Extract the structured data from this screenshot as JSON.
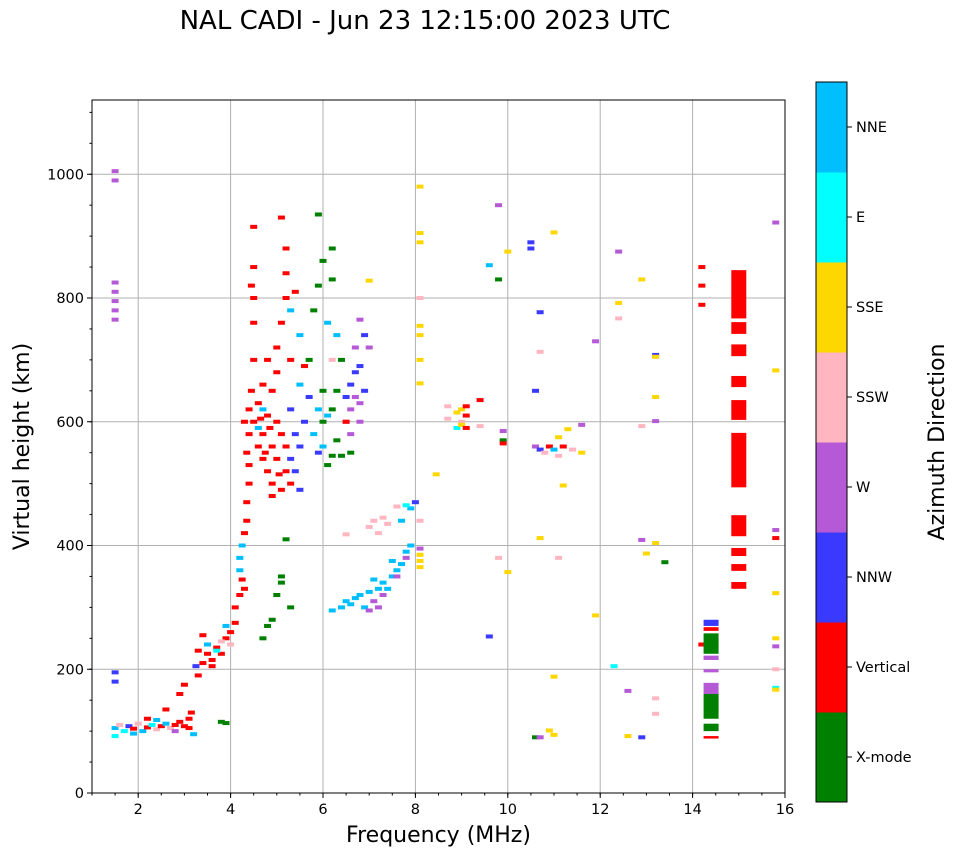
{
  "chart_data": {
    "type": "scatter",
    "title": "NAL CADI - Jun 23 12:15:00 2023 UTC",
    "xlabel": "Frequency (MHz)",
    "ylabel": "Virtual height (km)",
    "xlim": [
      1,
      16
    ],
    "ylim": [
      0,
      1120
    ],
    "xticks": [
      2,
      4,
      6,
      8,
      10,
      12,
      14,
      16
    ],
    "yticks": [
      0,
      200,
      400,
      600,
      800,
      1000
    ],
    "grid": true,
    "colorbar": {
      "label": "Azimuth Direction",
      "categories": [
        {
          "name": "X-mode",
          "color": "#008000"
        },
        {
          "name": "Vertical",
          "color": "#ff0000"
        },
        {
          "name": "NNW",
          "color": "#3a3aff"
        },
        {
          "name": "W",
          "color": "#b559d6"
        },
        {
          "name": "SSW",
          "color": "#ffb6c1"
        },
        {
          "name": "SSE",
          "color": "#ffd700"
        },
        {
          "name": "E",
          "color": "#00ffff"
        },
        {
          "name": "NNE",
          "color": "#00bfff"
        }
      ]
    },
    "point_fields": [
      "frequency_mhz",
      "height_km",
      "category_index"
    ],
    "points": [
      [
        1.5,
        105,
        7
      ],
      [
        1.6,
        110,
        4
      ],
      [
        1.7,
        100,
        6
      ],
      [
        1.8,
        108,
        2
      ],
      [
        1.9,
        104,
        1
      ],
      [
        2.0,
        112,
        4
      ],
      [
        2.1,
        100,
        7
      ],
      [
        2.2,
        106,
        1
      ],
      [
        2.3,
        110,
        6
      ],
      [
        2.4,
        103,
        4
      ],
      [
        2.5,
        108,
        1
      ],
      [
        2.6,
        112,
        7
      ],
      [
        2.7,
        105,
        4
      ],
      [
        2.8,
        110,
        1
      ],
      [
        2.9,
        115,
        1
      ],
      [
        3.0,
        108,
        1
      ],
      [
        3.1,
        120,
        1
      ],
      [
        3.15,
        130,
        1
      ],
      [
        2.2,
        120,
        1
      ],
      [
        2.6,
        135,
        1
      ],
      [
        2.9,
        160,
        1
      ],
      [
        3.0,
        175,
        1
      ],
      [
        1.5,
        92,
        6
      ],
      [
        3.2,
        95,
        7
      ],
      [
        1.5,
        195,
        2
      ],
      [
        1.5,
        180,
        2
      ],
      [
        1.9,
        96,
        7
      ],
      [
        2.4,
        118,
        7
      ],
      [
        2.8,
        100,
        3
      ],
      [
        3.1,
        105,
        1
      ],
      [
        1.5,
        1005,
        3
      ],
      [
        1.5,
        990,
        3
      ],
      [
        1.5,
        825,
        3
      ],
      [
        1.5,
        810,
        3
      ],
      [
        1.5,
        795,
        3
      ],
      [
        1.5,
        780,
        3
      ],
      [
        1.5,
        765,
        3
      ],
      [
        3.3,
        190,
        1
      ],
      [
        3.4,
        210,
        1
      ],
      [
        3.5,
        225,
        1
      ],
      [
        3.6,
        215,
        1
      ],
      [
        3.7,
        235,
        1
      ],
      [
        3.8,
        225,
        1
      ],
      [
        3.9,
        250,
        1
      ],
      [
        4.0,
        260,
        1
      ],
      [
        4.1,
        275,
        1
      ],
      [
        4.1,
        300,
        1
      ],
      [
        3.5,
        240,
        7
      ],
      [
        3.7,
        230,
        6
      ],
      [
        3.9,
        270,
        7
      ],
      [
        4.0,
        240,
        4
      ],
      [
        3.4,
        255,
        1
      ],
      [
        3.6,
        205,
        1
      ],
      [
        3.8,
        245,
        4
      ],
      [
        3.3,
        230,
        1
      ],
      [
        3.25,
        205,
        2
      ],
      [
        4.2,
        320,
        1
      ],
      [
        4.25,
        345,
        1
      ],
      [
        4.2,
        380,
        7
      ],
      [
        4.25,
        400,
        7
      ],
      [
        4.3,
        420,
        1
      ],
      [
        4.35,
        440,
        1
      ],
      [
        4.35,
        470,
        1
      ],
      [
        4.4,
        500,
        1
      ],
      [
        4.4,
        530,
        1
      ],
      [
        4.35,
        550,
        1
      ],
      [
        4.4,
        580,
        1
      ],
      [
        4.5,
        600,
        1
      ],
      [
        4.3,
        600,
        1
      ],
      [
        4.4,
        620,
        1
      ],
      [
        4.45,
        650,
        1
      ],
      [
        4.5,
        700,
        1
      ],
      [
        4.5,
        760,
        1
      ],
      [
        4.5,
        800,
        1
      ],
      [
        4.45,
        820,
        1
      ],
      [
        4.5,
        850,
        1
      ],
      [
        4.5,
        915,
        1
      ],
      [
        4.3,
        330,
        1
      ],
      [
        4.2,
        360,
        7
      ],
      [
        4.6,
        560,
        1
      ],
      [
        4.7,
        540,
        1
      ],
      [
        4.8,
        520,
        1
      ],
      [
        4.9,
        500,
        1
      ],
      [
        4.7,
        580,
        1
      ],
      [
        4.9,
        560,
        1
      ],
      [
        5.0,
        540,
        1
      ],
      [
        4.8,
        610,
        1
      ],
      [
        5.0,
        600,
        1
      ],
      [
        5.1,
        580,
        1
      ],
      [
        5.2,
        520,
        1
      ],
      [
        5.3,
        500,
        1
      ],
      [
        4.6,
        630,
        1
      ],
      [
        5.2,
        560,
        1
      ],
      [
        5.1,
        490,
        1
      ],
      [
        4.9,
        480,
        1
      ],
      [
        4.75,
        550,
        1
      ],
      [
        4.85,
        590,
        1
      ],
      [
        5.05,
        515,
        1
      ],
      [
        4.65,
        605,
        1
      ],
      [
        5.3,
        540,
        2
      ],
      [
        5.4,
        520,
        2
      ],
      [
        5.5,
        560,
        2
      ],
      [
        5.4,
        580,
        2
      ],
      [
        5.6,
        600,
        2
      ],
      [
        5.7,
        640,
        2
      ],
      [
        5.3,
        620,
        2
      ],
      [
        5.5,
        490,
        2
      ],
      [
        4.6,
        590,
        7
      ],
      [
        4.7,
        620,
        7
      ],
      [
        4.8,
        700,
        1
      ],
      [
        5.0,
        720,
        1
      ],
      [
        5.1,
        760,
        1
      ],
      [
        5.2,
        800,
        1
      ],
      [
        5.3,
        780,
        7
      ],
      [
        5.2,
        840,
        1
      ],
      [
        5.1,
        930,
        1
      ],
      [
        5.2,
        880,
        1
      ],
      [
        5.4,
        810,
        1
      ],
      [
        5.0,
        680,
        1
      ],
      [
        5.3,
        700,
        1
      ],
      [
        5.5,
        740,
        7
      ],
      [
        5.6,
        690,
        1
      ],
      [
        4.9,
        650,
        1
      ],
      [
        4.7,
        660,
        1
      ],
      [
        5.5,
        660,
        7
      ],
      [
        5.7,
        700,
        0
      ],
      [
        5.8,
        780,
        0
      ],
      [
        5.9,
        820,
        0
      ],
      [
        6.0,
        860,
        0
      ],
      [
        5.9,
        935,
        0
      ],
      [
        6.2,
        880,
        0
      ],
      [
        6.2,
        830,
        0
      ],
      [
        6.0,
        650,
        0
      ],
      [
        6.2,
        620,
        0
      ],
      [
        6.3,
        570,
        0
      ],
      [
        6.4,
        545,
        0
      ],
      [
        6.1,
        530,
        0
      ],
      [
        6.0,
        600,
        0
      ],
      [
        5.8,
        580,
        7
      ],
      [
        5.9,
        620,
        7
      ],
      [
        6.0,
        560,
        7
      ],
      [
        5.9,
        550,
        2
      ],
      [
        6.1,
        610,
        7
      ],
      [
        6.3,
        650,
        0
      ],
      [
        6.4,
        700,
        0
      ],
      [
        6.3,
        740,
        7
      ],
      [
        6.1,
        760,
        7
      ],
      [
        6.5,
        600,
        3
      ],
      [
        6.6,
        620,
        3
      ],
      [
        6.7,
        640,
        3
      ],
      [
        6.8,
        600,
        3
      ],
      [
        6.6,
        580,
        3
      ],
      [
        6.7,
        680,
        2
      ],
      [
        6.8,
        690,
        2
      ],
      [
        6.6,
        660,
        2
      ],
      [
        6.5,
        640,
        2
      ],
      [
        6.9,
        650,
        2
      ],
      [
        6.8,
        630,
        3
      ],
      [
        6.7,
        720,
        3
      ],
      [
        6.8,
        765,
        3
      ],
      [
        6.9,
        740,
        2
      ],
      [
        7.0,
        720,
        3
      ],
      [
        6.6,
        550,
        0
      ],
      [
        6.2,
        545,
        0
      ],
      [
        6.5,
        600,
        1
      ],
      [
        6.2,
        700,
        4
      ],
      [
        7.0,
        828,
        5
      ],
      [
        4.7,
        250,
        0
      ],
      [
        4.8,
        270,
        0
      ],
      [
        4.9,
        280,
        0
      ],
      [
        5.0,
        320,
        0
      ],
      [
        5.1,
        350,
        0
      ],
      [
        5.2,
        410,
        0
      ],
      [
        5.3,
        300,
        0
      ],
      [
        5.1,
        340,
        0
      ],
      [
        3.8,
        115,
        0
      ],
      [
        3.9,
        113,
        0
      ],
      [
        6.2,
        295,
        7
      ],
      [
        6.4,
        300,
        7
      ],
      [
        6.5,
        310,
        7
      ],
      [
        6.6,
        305,
        7
      ],
      [
        6.7,
        315,
        7
      ],
      [
        6.8,
        320,
        7
      ],
      [
        6.9,
        300,
        7
      ],
      [
        7.0,
        325,
        7
      ],
      [
        7.1,
        310,
        3
      ],
      [
        7.2,
        330,
        7
      ],
      [
        7.3,
        340,
        7
      ],
      [
        7.4,
        330,
        7
      ],
      [
        7.2,
        300,
        3
      ],
      [
        7.3,
        320,
        3
      ],
      [
        7.5,
        350,
        7
      ],
      [
        7.6,
        360,
        7
      ],
      [
        7.7,
        370,
        7
      ],
      [
        7.8,
        380,
        3
      ],
      [
        7.8,
        390,
        7
      ],
      [
        7.9,
        400,
        7
      ],
      [
        7.6,
        350,
        3
      ],
      [
        7.0,
        295,
        3
      ],
      [
        7.1,
        345,
        7
      ],
      [
        7.5,
        375,
        7
      ],
      [
        7.9,
        460,
        7
      ],
      [
        7.8,
        465,
        6
      ],
      [
        8.0,
        470,
        2
      ],
      [
        7.7,
        440,
        7
      ],
      [
        6.5,
        418,
        4
      ],
      [
        7.0,
        430,
        4
      ],
      [
        7.1,
        440,
        4
      ],
      [
        7.3,
        445,
        4
      ],
      [
        7.4,
        435,
        4
      ],
      [
        7.2,
        420,
        4
      ],
      [
        7.6,
        463,
        4
      ],
      [
        8.1,
        440,
        4
      ],
      [
        8.1,
        980,
        5
      ],
      [
        8.1,
        905,
        5
      ],
      [
        8.1,
        890,
        5
      ],
      [
        8.1,
        755,
        5
      ],
      [
        8.1,
        740,
        5
      ],
      [
        8.1,
        700,
        5
      ],
      [
        8.1,
        662,
        5
      ],
      [
        8.1,
        800,
        4
      ],
      [
        8.1,
        385,
        5
      ],
      [
        8.1,
        375,
        5
      ],
      [
        8.1,
        365,
        5
      ],
      [
        8.1,
        395,
        3
      ],
      [
        8.7,
        625,
        4
      ],
      [
        8.7,
        605,
        4
      ],
      [
        8.9,
        615,
        5
      ],
      [
        9.0,
        600,
        4
      ],
      [
        9.0,
        620,
        5
      ],
      [
        9.1,
        625,
        1
      ],
      [
        9.1,
        610,
        1
      ],
      [
        9.4,
        635,
        1
      ],
      [
        8.9,
        590,
        6
      ],
      [
        9.0,
        595,
        5
      ],
      [
        9.1,
        590,
        1
      ],
      [
        8.45,
        515,
        5
      ],
      [
        9.4,
        593,
        4
      ],
      [
        9.9,
        585,
        3
      ],
      [
        9.9,
        570,
        0
      ],
      [
        9.9,
        565,
        1
      ],
      [
        10.6,
        560,
        3
      ],
      [
        10.7,
        555,
        2
      ],
      [
        10.8,
        550,
        4
      ],
      [
        10.9,
        560,
        1
      ],
      [
        11.0,
        555,
        7
      ],
      [
        11.1,
        545,
        4
      ],
      [
        11.2,
        560,
        1
      ],
      [
        11.4,
        555,
        4
      ],
      [
        11.6,
        550,
        5
      ],
      [
        11.1,
        575,
        5
      ],
      [
        11.2,
        497,
        5
      ],
      [
        10.7,
        412,
        5
      ],
      [
        11.1,
        380,
        4
      ],
      [
        11.3,
        588,
        5
      ],
      [
        9.8,
        950,
        3
      ],
      [
        9.6,
        853,
        7
      ],
      [
        9.8,
        830,
        0
      ],
      [
        10.5,
        890,
        2
      ],
      [
        10.5,
        880,
        2
      ],
      [
        10.0,
        875,
        5
      ],
      [
        11.0,
        906,
        5
      ],
      [
        10.7,
        777,
        2
      ],
      [
        10.7,
        713,
        4
      ],
      [
        10.6,
        650,
        2
      ],
      [
        11.6,
        595,
        3
      ],
      [
        11.9,
        730,
        3
      ],
      [
        12.4,
        875,
        3
      ],
      [
        12.4,
        792,
        5
      ],
      [
        12.4,
        767,
        4
      ],
      [
        12.9,
        830,
        5
      ],
      [
        13.2,
        708,
        2
      ],
      [
        13.2,
        705,
        5
      ],
      [
        13.2,
        640,
        5
      ],
      [
        13.2,
        601,
        3
      ],
      [
        12.9,
        593,
        4
      ],
      [
        12.9,
        409,
        3
      ],
      [
        13.0,
        387,
        5
      ],
      [
        13.2,
        404,
        5
      ],
      [
        13.4,
        373,
        0
      ],
      [
        12.3,
        205,
        6
      ],
      [
        12.6,
        165,
        3
      ],
      [
        12.6,
        92,
        5
      ],
      [
        12.9,
        90,
        2
      ],
      [
        13.2,
        153,
        4
      ],
      [
        13.2,
        128,
        4
      ],
      [
        11.0,
        188,
        5
      ],
      [
        11.9,
        287,
        5
      ],
      [
        10.0,
        357,
        5
      ],
      [
        9.8,
        380,
        4
      ],
      [
        9.6,
        253,
        2
      ],
      [
        10.6,
        90,
        0
      ],
      [
        10.7,
        90,
        3
      ],
      [
        10.9,
        101,
        5
      ],
      [
        11.0,
        94,
        5
      ],
      [
        14.2,
        850,
        1
      ],
      [
        14.2,
        820,
        1
      ],
      [
        14.2,
        789,
        1
      ],
      [
        14.2,
        240,
        1
      ],
      [
        15.8,
        922,
        3
      ],
      [
        15.8,
        683,
        5
      ],
      [
        15.8,
        425,
        3
      ],
      [
        15.8,
        412,
        1
      ],
      [
        15.8,
        323,
        5
      ],
      [
        15.8,
        250,
        5
      ],
      [
        15.8,
        237,
        3
      ],
      [
        15.8,
        200,
        4
      ],
      [
        15.8,
        170,
        6
      ],
      [
        15.8,
        167,
        5
      ]
    ],
    "bar_fields": [
      "frequency_mhz",
      "height_low_km",
      "height_high_km",
      "category_index"
    ],
    "bars": [
      [
        15.0,
        767,
        845,
        1
      ],
      [
        15.0,
        742,
        761,
        1
      ],
      [
        15.0,
        706,
        725,
        1
      ],
      [
        15.0,
        656,
        674,
        1
      ],
      [
        15.0,
        603,
        635,
        1
      ],
      [
        15.0,
        494,
        582,
        1
      ],
      [
        15.0,
        415,
        449,
        1
      ],
      [
        15.0,
        383,
        396,
        1
      ],
      [
        15.0,
        359,
        370,
        1
      ],
      [
        15.0,
        330,
        341,
        1
      ],
      [
        14.4,
        270,
        280,
        2
      ],
      [
        14.4,
        262,
        268,
        1
      ],
      [
        14.4,
        225,
        258,
        0
      ],
      [
        14.4,
        215,
        222,
        3
      ],
      [
        14.4,
        195,
        200,
        3
      ],
      [
        14.4,
        160,
        178,
        3
      ],
      [
        14.4,
        120,
        160,
        0
      ],
      [
        14.4,
        100,
        112,
        0
      ],
      [
        14.4,
        88,
        92,
        1
      ]
    ]
  }
}
